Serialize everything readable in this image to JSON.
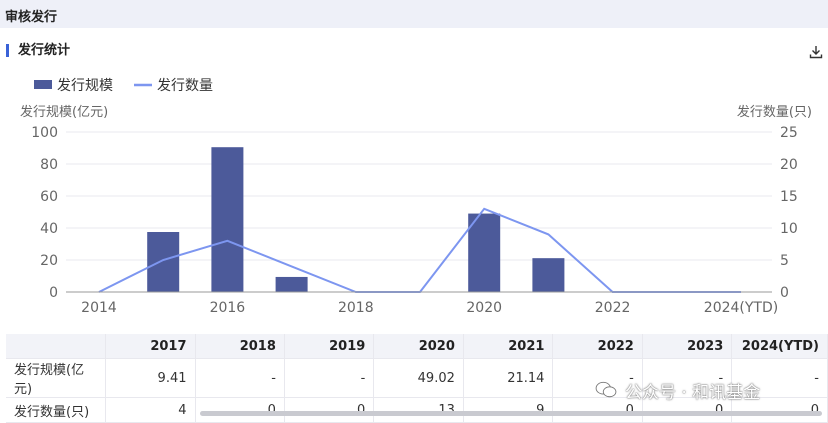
{
  "header": {
    "title": "审核发行"
  },
  "section": {
    "title": "发行统计"
  },
  "watermark": {
    "text": "公众号 · 和讯基金"
  },
  "chart_data": {
    "type": "bar+line",
    "x": [
      "2014",
      "2015",
      "2016",
      "2017",
      "2018",
      "2019",
      "2020",
      "2021",
      "2022",
      "2023",
      "2024(YTD)"
    ],
    "xticks": [
      "2014",
      "2016",
      "2018",
      "2020",
      "2022",
      "2024(YTD)"
    ],
    "ylabel_left": "发行规模(亿元)",
    "ylabel_right": "发行数量(只)",
    "ylim_left": [
      0,
      100
    ],
    "ylim_right": [
      0,
      25
    ],
    "yticks_left": [
      "0",
      "20",
      "40",
      "60",
      "80",
      "100"
    ],
    "yticks_right": [
      "0",
      "5",
      "10",
      "15",
      "20",
      "25"
    ],
    "legend_position": "top-left",
    "grid": true,
    "series": [
      {
        "name": "发行规模",
        "type": "bar",
        "axis": "left",
        "color": "#4c5a9a",
        "values": [
          0,
          37.5,
          90.5,
          9.41,
          0,
          0,
          49.02,
          21.14,
          0,
          0,
          0
        ]
      },
      {
        "name": "发行数量",
        "type": "line",
        "axis": "right",
        "color": "#7d96f0",
        "values": [
          0,
          5,
          8,
          4,
          0,
          0,
          13,
          9,
          0,
          0,
          0
        ]
      }
    ]
  },
  "table": {
    "columns": [
      "2017",
      "2018",
      "2019",
      "2020",
      "2021",
      "2022",
      "2023",
      "2024(YTD)"
    ],
    "rows": [
      {
        "label": "发行规模(亿元)",
        "values": [
          "9.41",
          "-",
          "-",
          "49.02",
          "21.14",
          "-",
          "-",
          "-"
        ]
      },
      {
        "label": "发行数量(只)",
        "values": [
          "4",
          "0",
          "0",
          "13",
          "9",
          "0",
          "0",
          "0"
        ]
      }
    ]
  }
}
